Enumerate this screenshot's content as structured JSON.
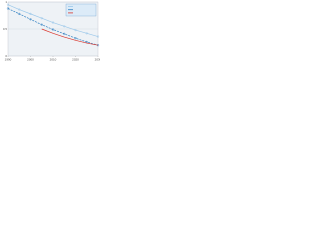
{
  "chart_data": {
    "type": "line",
    "x": [
      1990,
      1995,
      2000,
      2005,
      2010,
      2015,
      2020,
      2025,
      2030
    ],
    "series": [
      {
        "color": "#9cc8ea",
        "dash": false,
        "markers": true,
        "values": [
          0.95,
          0.86,
          0.78,
          0.7,
          0.62,
          0.55,
          0.48,
          0.42,
          0.36
        ]
      },
      {
        "color": "#2f7fc1",
        "dash": true,
        "markers": true,
        "values": [
          0.88,
          0.78,
          0.68,
          0.58,
          0.49,
          0.41,
          0.33,
          0.26,
          0.2
        ]
      },
      {
        "color": "#d9342b",
        "dash": false,
        "markers": false,
        "values": [
          null,
          null,
          null,
          0.5,
          0.42,
          0.35,
          0.29,
          0.24,
          0.2
        ]
      }
    ],
    "xlim": [
      1990,
      2030
    ],
    "xticks": [
      1990,
      2000,
      2010,
      2020,
      2030
    ],
    "ylim": [
      0,
      1
    ],
    "yticks": [
      0,
      0.5,
      1
    ],
    "grid": true
  }
}
